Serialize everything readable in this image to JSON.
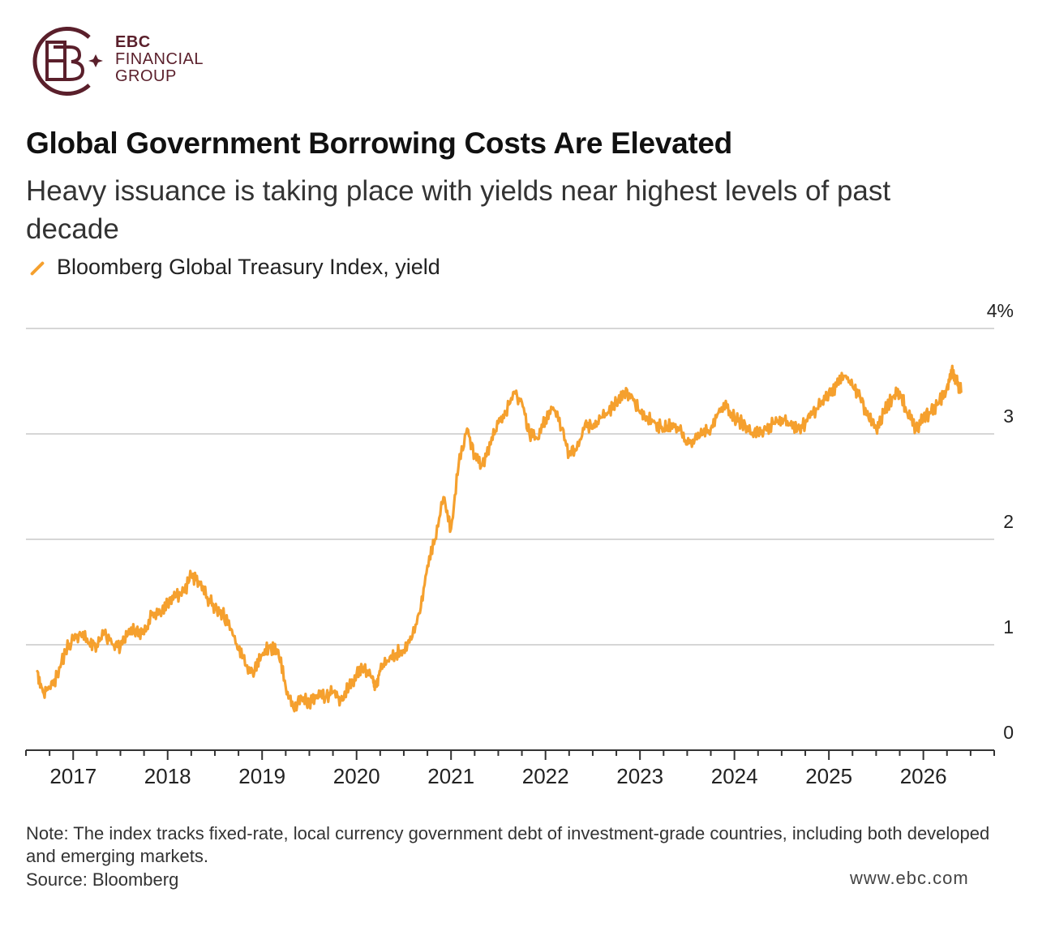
{
  "logo": {
    "line1": "EBC",
    "line2": "FINANCIAL",
    "line3": "GROUP",
    "color": "#5a1f2b"
  },
  "header": {
    "title": "Global Government Borrowing Costs Are Elevated",
    "subtitle": "Heavy issuance is taking place with yields near highest levels of past decade"
  },
  "legend": {
    "label": "Bloomberg Global Treasury Index, yield",
    "color": "#f5a02e"
  },
  "footer": {
    "note": "Note: The index tracks fixed-rate, local currency government debt of investment-grade countries, including both developed and emerging markets.",
    "source": "Source: Bloomberg",
    "watermark": "www.ebc.com"
  },
  "chart_data": {
    "type": "line",
    "title": "Global Government Borrowing Costs Are Elevated",
    "subtitle": "Heavy issuance is taking place with yields near highest levels of past decade",
    "xlabel": "",
    "ylabel": "",
    "xlim": [
      2016.5,
      2026.75
    ],
    "ylim": [
      0,
      4
    ],
    "y_ticks": [
      0,
      1,
      2,
      3,
      4
    ],
    "y_tick_labels": [
      "0",
      "1",
      "2",
      "3",
      "4%"
    ],
    "x_ticks": [
      2017,
      2018,
      2019,
      2020,
      2021,
      2022,
      2023,
      2024,
      2025,
      2026
    ],
    "x_tick_labels": [
      "2017",
      "2018",
      "2019",
      "2020",
      "2021",
      "2022",
      "2023",
      "2024",
      "2025",
      "2026"
    ],
    "grid": "horizontal",
    "legend_position": "top-left",
    "series": [
      {
        "name": "Bloomberg Global Treasury Index, yield",
        "color": "#f5a02e",
        "x": [
          2016.62,
          2016.68,
          2016.75,
          2016.83,
          2016.92,
          2017.0,
          2017.08,
          2017.17,
          2017.25,
          2017.33,
          2017.42,
          2017.5,
          2017.58,
          2017.67,
          2017.75,
          2017.83,
          2017.92,
          2018.0,
          2018.08,
          2018.17,
          2018.25,
          2018.33,
          2018.42,
          2018.5,
          2018.58,
          2018.67,
          2018.75,
          2018.83,
          2018.92,
          2019.0,
          2019.08,
          2019.17,
          2019.25,
          2019.33,
          2019.42,
          2019.5,
          2019.58,
          2019.67,
          2019.75,
          2019.83,
          2019.92,
          2020.0,
          2020.08,
          2020.17,
          2020.2,
          2020.25,
          2020.33,
          2020.42,
          2020.5,
          2020.58,
          2020.67,
          2020.75,
          2020.83,
          2020.92,
          2021.0,
          2021.08,
          2021.17,
          2021.25,
          2021.33,
          2021.42,
          2021.5,
          2021.58,
          2021.67,
          2021.75,
          2021.83,
          2021.92,
          2022.0,
          2022.08,
          2022.17,
          2022.25,
          2022.33,
          2022.42,
          2022.5,
          2022.58,
          2022.67,
          2022.75,
          2022.83,
          2022.92,
          2023.0,
          2023.08,
          2023.17,
          2023.25,
          2023.33,
          2023.42,
          2023.5,
          2023.58,
          2023.67,
          2023.75,
          2023.83,
          2023.92,
          2024.0,
          2024.08,
          2024.17,
          2024.25,
          2024.33,
          2024.42,
          2024.5,
          2024.58,
          2024.67,
          2024.75,
          2024.83,
          2024.92,
          2025.0,
          2025.08,
          2025.17,
          2025.25,
          2025.33,
          2025.42,
          2025.5,
          2025.58,
          2025.67,
          2025.75,
          2025.83,
          2025.92,
          2026.0,
          2026.08,
          2026.17,
          2026.25,
          2026.3,
          2026.35,
          2026.4
        ],
        "y": [
          0.75,
          0.55,
          0.6,
          0.7,
          0.95,
          1.05,
          1.1,
          1.02,
          1.0,
          1.12,
          1.0,
          0.98,
          1.1,
          1.15,
          1.1,
          1.28,
          1.3,
          1.4,
          1.45,
          1.5,
          1.65,
          1.6,
          1.45,
          1.35,
          1.3,
          1.15,
          0.95,
          0.8,
          0.75,
          0.9,
          0.98,
          0.95,
          0.6,
          0.4,
          0.5,
          0.45,
          0.52,
          0.5,
          0.55,
          0.48,
          0.6,
          0.72,
          0.78,
          0.7,
          0.6,
          0.75,
          0.85,
          0.92,
          0.95,
          1.05,
          1.3,
          1.75,
          2.0,
          2.4,
          2.1,
          2.7,
          3.05,
          2.8,
          2.7,
          2.9,
          3.1,
          3.2,
          3.4,
          3.3,
          3.0,
          2.95,
          3.15,
          3.25,
          3.05,
          2.8,
          2.85,
          3.1,
          3.05,
          3.15,
          3.2,
          3.3,
          3.4,
          3.35,
          3.2,
          3.15,
          3.1,
          3.05,
          3.1,
          3.05,
          2.9,
          2.95,
          3.0,
          3.05,
          3.2,
          3.25,
          3.15,
          3.1,
          3.0,
          3.0,
          3.05,
          3.1,
          3.15,
          3.1,
          3.05,
          3.1,
          3.2,
          3.3,
          3.4,
          3.45,
          3.55,
          3.45,
          3.35,
          3.15,
          3.05,
          3.2,
          3.35,
          3.4,
          3.2,
          3.05,
          3.15,
          3.2,
          3.3,
          3.45,
          3.6,
          3.5,
          3.4
        ]
      }
    ]
  }
}
